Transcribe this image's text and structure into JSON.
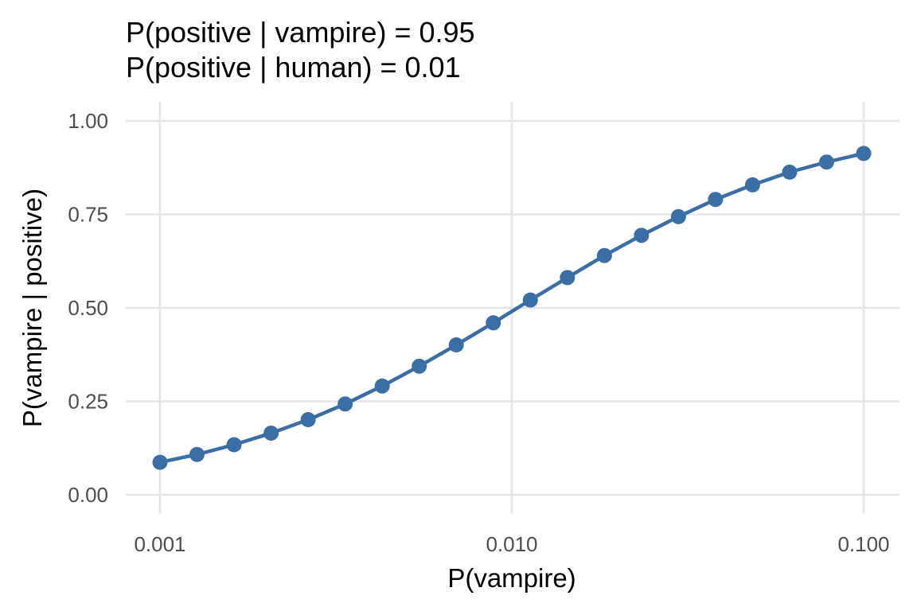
{
  "chart_data": {
    "type": "line",
    "title_lines": [
      "P(positive | vampire) = 0.95",
      "P(positive | human) = 0.01"
    ],
    "xlabel": "P(vampire)",
    "ylabel": "P(vampire | positive)",
    "x_scale": "log10",
    "xlim": [
      0.001,
      0.1
    ],
    "ylim": [
      0,
      1
    ],
    "x_ticks": [
      0.001,
      0.01,
      0.1
    ],
    "x_tick_labels": [
      "0.001",
      "0.010",
      "0.100"
    ],
    "y_ticks": [
      0,
      0.25,
      0.5,
      0.75,
      1
    ],
    "y_tick_labels": [
      "0.00",
      "0.25",
      "0.50",
      "0.75",
      "1.00"
    ],
    "grid": true,
    "legend": "none",
    "color": "#3b6ea5",
    "series": [
      {
        "x": [
          0.001,
          0.001274,
          0.001624,
          0.002069,
          0.002637,
          0.00336,
          0.004281,
          0.005456,
          0.006952,
          0.008859,
          0.011288,
          0.014384,
          0.01833,
          0.023357,
          0.029764,
          0.037927,
          0.048329,
          0.061585,
          0.078476,
          0.1
        ],
        "y": [
          0.087,
          0.108,
          0.134,
          0.165,
          0.201,
          0.243,
          0.291,
          0.344,
          0.401,
          0.46,
          0.521,
          0.581,
          0.64,
          0.694,
          0.744,
          0.79,
          0.829,
          0.863,
          0.89,
          0.913
        ]
      }
    ]
  }
}
